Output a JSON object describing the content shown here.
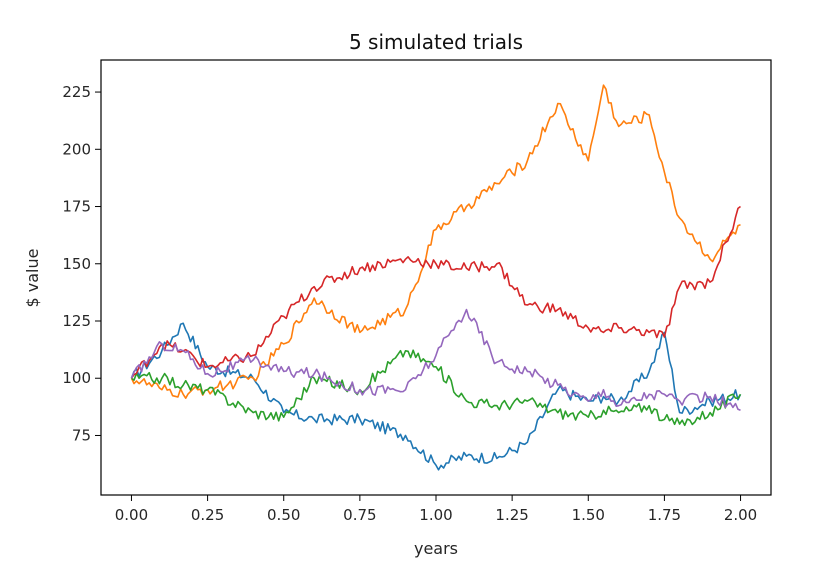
{
  "chart_data": {
    "type": "line",
    "title": "5 simulated trials",
    "xlabel": "years",
    "ylabel": "$ value",
    "xlim": [
      -0.1,
      2.1
    ],
    "ylim": [
      49,
      239
    ],
    "x_ticks": [
      0.0,
      0.25,
      0.5,
      0.75,
      1.0,
      1.25,
      1.5,
      1.75,
      2.0
    ],
    "x_tick_labels": [
      "0.00",
      "0.25",
      "0.50",
      "0.75",
      "1.00",
      "1.25",
      "1.50",
      "1.75",
      "2.00"
    ],
    "y_ticks": [
      75,
      100,
      125,
      150,
      175,
      200,
      225
    ],
    "y_tick_labels": [
      "75",
      "100",
      "125",
      "150",
      "175",
      "200",
      "225"
    ],
    "grid": false,
    "legend": "none",
    "x": [
      0.0,
      0.1,
      0.17,
      0.25,
      0.4,
      0.5,
      0.6,
      0.75,
      0.9,
      1.0,
      1.1,
      1.2,
      1.3,
      1.4,
      1.5,
      1.55,
      1.6,
      1.7,
      1.75,
      1.8,
      1.9,
      2.0
    ],
    "series": [
      {
        "color": "#1f77b4",
        "values": [
          100,
          112,
          124,
          105,
          100,
          85,
          82,
          82,
          75,
          62,
          66,
          65,
          72,
          95,
          90,
          92,
          90,
          103,
          120,
          85,
          90,
          93
        ]
      },
      {
        "color": "#ff7f0e",
        "values": [
          100,
          95,
          93,
          95,
          100,
          115,
          135,
          120,
          130,
          165,
          175,
          185,
          195,
          220,
          195,
          228,
          210,
          215,
          190,
          170,
          152,
          167
        ]
      },
      {
        "color": "#2ca02c",
        "values": [
          100,
          100,
          97,
          95,
          85,
          83,
          100,
          95,
          112,
          105,
          90,
          88,
          90,
          85,
          83,
          86,
          85,
          88,
          82,
          80,
          85,
          93
        ]
      },
      {
        "color": "#d62728",
        "values": [
          100,
          115,
          112,
          105,
          110,
          127,
          140,
          148,
          152,
          150,
          148,
          150,
          132,
          130,
          122,
          120,
          122,
          120,
          118,
          140,
          142,
          175
        ]
      },
      {
        "color": "#9467bd",
        "values": [
          100,
          115,
          112,
          102,
          108,
          103,
          102,
          95,
          95,
          110,
          130,
          107,
          103,
          97,
          90,
          95,
          88,
          93,
          93,
          90,
          92,
          86
        ]
      }
    ]
  }
}
